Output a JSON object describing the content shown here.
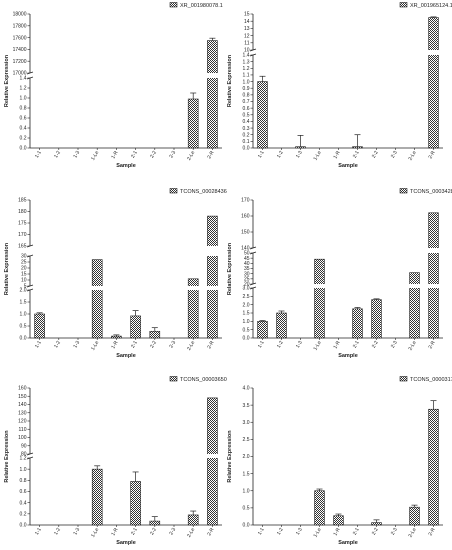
{
  "chart_data": [
    {
      "type": "bar",
      "categories": [
        "1-1",
        "1-2",
        "1-3",
        "1-Le",
        "1-R",
        "2-1",
        "2-2",
        "2-3",
        "2-Le",
        "2-R"
      ],
      "series": [
        {
          "name": "XR_001980078.1",
          "values": [
            0,
            0,
            0,
            0,
            0,
            0,
            0,
            0,
            0.98,
            17550
          ],
          "errors": [
            0,
            0,
            0,
            0,
            0,
            0,
            0,
            0,
            0.12,
            40
          ]
        }
      ],
      "xlabel": "Sample",
      "ylabel": "Relative Expression",
      "segments": [
        {
          "range": [
            0,
            1.4
          ],
          "ticks": [
            "0.0",
            "0.2",
            "0.4",
            "0.6",
            "0.8",
            "1.0",
            "1.2",
            "1.4"
          ]
        },
        {
          "range": [
            17000,
            18000
          ],
          "ticks": [
            "17000",
            "17200",
            "17400",
            "17600",
            "17800",
            "18000"
          ]
        }
      ]
    },
    {
      "type": "bar",
      "categories": [
        "1-1",
        "1-2",
        "1-3",
        "1-Le",
        "1-R",
        "2-1",
        "2-2",
        "2-3",
        "2-Le",
        "2-R"
      ],
      "series": [
        {
          "name": "XR_001965124.1",
          "values": [
            1.0,
            0,
            0.02,
            0,
            0,
            0.02,
            0,
            0,
            0,
            14.5
          ],
          "errors": [
            0.08,
            0,
            0.17,
            0,
            0,
            0.18,
            0,
            0,
            0,
            0.1
          ]
        }
      ],
      "xlabel": "Sample",
      "ylabel": "Relative Expression",
      "segments": [
        {
          "range": [
            0,
            1.4
          ],
          "ticks": [
            "0.0",
            "0.1",
            "0.2",
            "0.3",
            "0.4",
            "0.5",
            "0.6",
            "0.7",
            "0.8",
            "0.9",
            "1.0",
            "1.1",
            "1.2",
            "1.3",
            "1.4"
          ]
        },
        {
          "range": [
            10,
            15
          ],
          "ticks": [
            "10",
            "11",
            "12",
            "13",
            "14",
            "15"
          ]
        }
      ]
    },
    {
      "type": "bar",
      "categories": [
        "1-1",
        "1-2",
        "1-3",
        "1-Le",
        "1-R",
        "2-1",
        "2-2",
        "2-3",
        "2-Le",
        "2-R"
      ],
      "series": [
        {
          "name": "TCONS_00028436",
          "values": [
            1.0,
            0,
            0,
            27,
            0.08,
            0.92,
            0.28,
            0,
            11,
            178
          ],
          "errors": [
            0.05,
            0,
            0,
            0,
            0.05,
            0.22,
            0.15,
            0,
            0,
            0
          ]
        }
      ],
      "xlabel": "Sample",
      "ylabel": "Relative Expression",
      "segments": [
        {
          "range": [
            0,
            2.0
          ],
          "ticks": [
            "0.0",
            "0.5",
            "1.0",
            "1.5",
            "2.0"
          ]
        },
        {
          "range": [
            5,
            30
          ],
          "ticks": [
            "5",
            "10",
            "15",
            "20",
            "25",
            "30"
          ]
        },
        {
          "range": [
            165,
            185
          ],
          "ticks": [
            "165",
            "170",
            "175",
            "180",
            "185"
          ]
        }
      ]
    },
    {
      "type": "bar",
      "categories": [
        "1-1",
        "1-2",
        "1-3",
        "1-Le",
        "1-R",
        "2-1",
        "2-2",
        "2-3",
        "2-Le",
        "2-R"
      ],
      "series": [
        {
          "name": "TCONS_00034287",
          "values": [
            1.0,
            1.5,
            0,
            44,
            0,
            1.75,
            2.3,
            0,
            31,
            162
          ],
          "errors": [
            0.05,
            0.12,
            0,
            0,
            0,
            0.08,
            0.05,
            0,
            0,
            0
          ]
        }
      ],
      "xlabel": "Sample",
      "ylabel": "Relative Expression",
      "segments": [
        {
          "range": [
            0,
            3.0
          ],
          "ticks": [
            "0.0",
            "0.5",
            "1.0",
            "1.5",
            "2.0",
            "2.5",
            "3.0"
          ]
        },
        {
          "range": [
            20,
            50
          ],
          "ticks": [
            "20",
            "25",
            "30",
            "35",
            "40",
            "45",
            "50"
          ]
        },
        {
          "range": [
            140,
            170
          ],
          "ticks": [
            "140",
            "150",
            "160",
            "170"
          ]
        }
      ]
    },
    {
      "type": "bar",
      "categories": [
        "1-1",
        "1-2",
        "1-3",
        "1-Le",
        "1-R",
        "2-1",
        "2-2",
        "2-3",
        "2-Le",
        "2-R"
      ],
      "series": [
        {
          "name": "TCONS_00003650",
          "values": [
            0,
            0,
            0,
            1.0,
            0,
            0.78,
            0.07,
            0,
            0.18,
            148
          ],
          "errors": [
            0,
            0,
            0,
            0.06,
            0,
            0.17,
            0.08,
            0,
            0.07,
            0
          ]
        }
      ],
      "xlabel": "Sample",
      "ylabel": "Relative Expression",
      "segments": [
        {
          "range": [
            0,
            1.2
          ],
          "ticks": [
            "0.0",
            "0.2",
            "0.4",
            "0.6",
            "0.8",
            "1.0",
            "1.2"
          ]
        },
        {
          "range": [
            80,
            160
          ],
          "ticks": [
            "80",
            "90",
            "100",
            "110",
            "120",
            "130",
            "140",
            "150",
            "160"
          ]
        }
      ]
    },
    {
      "type": "bar",
      "categories": [
        "1-1",
        "1-2",
        "1-3",
        "1-Le",
        "1-R",
        "2-1",
        "2-2",
        "2-3",
        "2-Le",
        "2-R"
      ],
      "series": [
        {
          "name": "TCONS_00003171",
          "values": [
            0,
            0,
            0,
            1.0,
            0.27,
            0,
            0.07,
            0,
            0.52,
            3.38
          ],
          "errors": [
            0,
            0,
            0,
            0.05,
            0.05,
            0,
            0.08,
            0,
            0.06,
            0.25
          ]
        }
      ],
      "xlabel": "Sample",
      "ylabel": "Relative Expression",
      "segments": [
        {
          "range": [
            0,
            4.0
          ],
          "ticks": [
            "0.0",
            "0.5",
            "1.0",
            "1.5",
            "2.0",
            "2.5",
            "3.0",
            "3.5",
            "4.0"
          ]
        }
      ]
    }
  ]
}
